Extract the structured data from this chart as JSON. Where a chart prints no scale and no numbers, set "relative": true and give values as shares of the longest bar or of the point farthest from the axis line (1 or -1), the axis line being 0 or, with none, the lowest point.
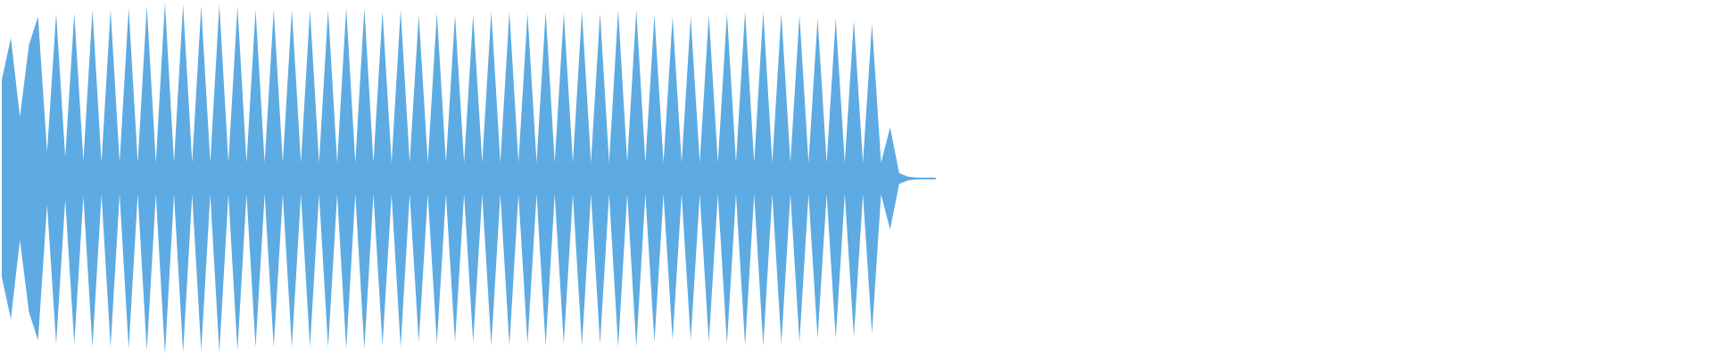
{
  "chart_data": {
    "type": "area",
    "relative": true,
    "categories": [
      null,
      null,
      null,
      null,
      null,
      null,
      null,
      null,
      null,
      null,
      null,
      null,
      null,
      null,
      null,
      null,
      null,
      null,
      null,
      null,
      null,
      null,
      null,
      null,
      null,
      null,
      null,
      null,
      null,
      null,
      null,
      null,
      null,
      null,
      null,
      null,
      null,
      null,
      null,
      null,
      null,
      null,
      null,
      null,
      null,
      null,
      null,
      null,
      null,
      null,
      null,
      null,
      null,
      null,
      null,
      null,
      null,
      null,
      null,
      null,
      null,
      null,
      null,
      null,
      null,
      null,
      null,
      null,
      null,
      null,
      null,
      null,
      null,
      null,
      null,
      null,
      null,
      null,
      null,
      null,
      null,
      null,
      null,
      null,
      null,
      null,
      null,
      null,
      null,
      null,
      null,
      null,
      null,
      null,
      null,
      null,
      null,
      null,
      null,
      null,
      null,
      null,
      null,
      null
    ],
    "series": [
      {
        "color": "#5dabe2",
        "values": [
          0.56,
          0.8,
          0.35,
          0.76,
          0.92,
          0.15,
          0.94,
          0.12,
          0.94,
          0.1,
          0.96,
          0.09,
          0.96,
          0.09,
          0.97,
          0.09,
          0.98,
          0.09,
          1.0,
          0.09,
          0.99,
          0.09,
          0.98,
          0.09,
          0.99,
          0.09,
          0.98,
          0.09,
          0.96,
          0.09,
          0.96,
          0.09,
          0.96,
          0.09,
          0.96,
          0.09,
          0.96,
          0.09,
          0.97,
          0.09,
          0.97,
          0.09,
          0.95,
          0.09,
          0.96,
          0.09,
          0.93,
          0.09,
          0.94,
          0.09,
          0.93,
          0.09,
          0.93,
          0.09,
          0.95,
          0.09,
          0.95,
          0.09,
          0.94,
          0.09,
          0.95,
          0.09,
          0.94,
          0.09,
          0.95,
          0.09,
          0.94,
          0.09,
          0.96,
          0.09,
          0.96,
          0.09,
          0.93,
          0.09,
          0.92,
          0.09,
          0.92,
          0.09,
          0.93,
          0.09,
          0.94,
          0.09,
          0.95,
          0.09,
          0.95,
          0.09,
          0.94,
          0.09,
          0.93,
          0.09,
          0.91,
          0.09,
          0.91,
          0.09,
          0.9,
          0.09,
          0.88,
          0.09,
          0.29,
          0.03,
          0.01,
          0.005,
          0.005,
          0.005
        ]
      },
      {
        "color": "#5dabe2",
        "values": [
          -0.56,
          -0.8,
          -0.35,
          -0.76,
          -0.92,
          -0.15,
          -0.94,
          -0.12,
          -0.94,
          -0.1,
          -0.96,
          -0.09,
          -0.96,
          -0.09,
          -0.97,
          -0.09,
          -0.98,
          -0.09,
          -1.0,
          -0.09,
          -0.99,
          -0.09,
          -0.98,
          -0.09,
          -0.99,
          -0.09,
          -0.98,
          -0.09,
          -0.96,
          -0.09,
          -0.96,
          -0.09,
          -0.96,
          -0.09,
          -0.96,
          -0.09,
          -0.96,
          -0.09,
          -0.97,
          -0.09,
          -0.97,
          -0.09,
          -0.95,
          -0.09,
          -0.96,
          -0.09,
          -0.93,
          -0.09,
          -0.94,
          -0.09,
          -0.93,
          -0.09,
          -0.93,
          -0.09,
          -0.95,
          -0.09,
          -0.95,
          -0.09,
          -0.94,
          -0.09,
          -0.95,
          -0.09,
          -0.94,
          -0.09,
          -0.95,
          -0.09,
          -0.94,
          -0.09,
          -0.96,
          -0.09,
          -0.96,
          -0.09,
          -0.93,
          -0.09,
          -0.92,
          -0.09,
          -0.92,
          -0.09,
          -0.93,
          -0.09,
          -0.94,
          -0.09,
          -0.95,
          -0.09,
          -0.95,
          -0.09,
          -0.94,
          -0.09,
          -0.93,
          -0.09,
          -0.91,
          -0.09,
          -0.91,
          -0.09,
          -0.9,
          -0.09,
          -0.88,
          -0.09,
          -0.29,
          -0.03,
          -0.01,
          -0.005,
          -0.005,
          -0.005
        ]
      }
    ]
  }
}
